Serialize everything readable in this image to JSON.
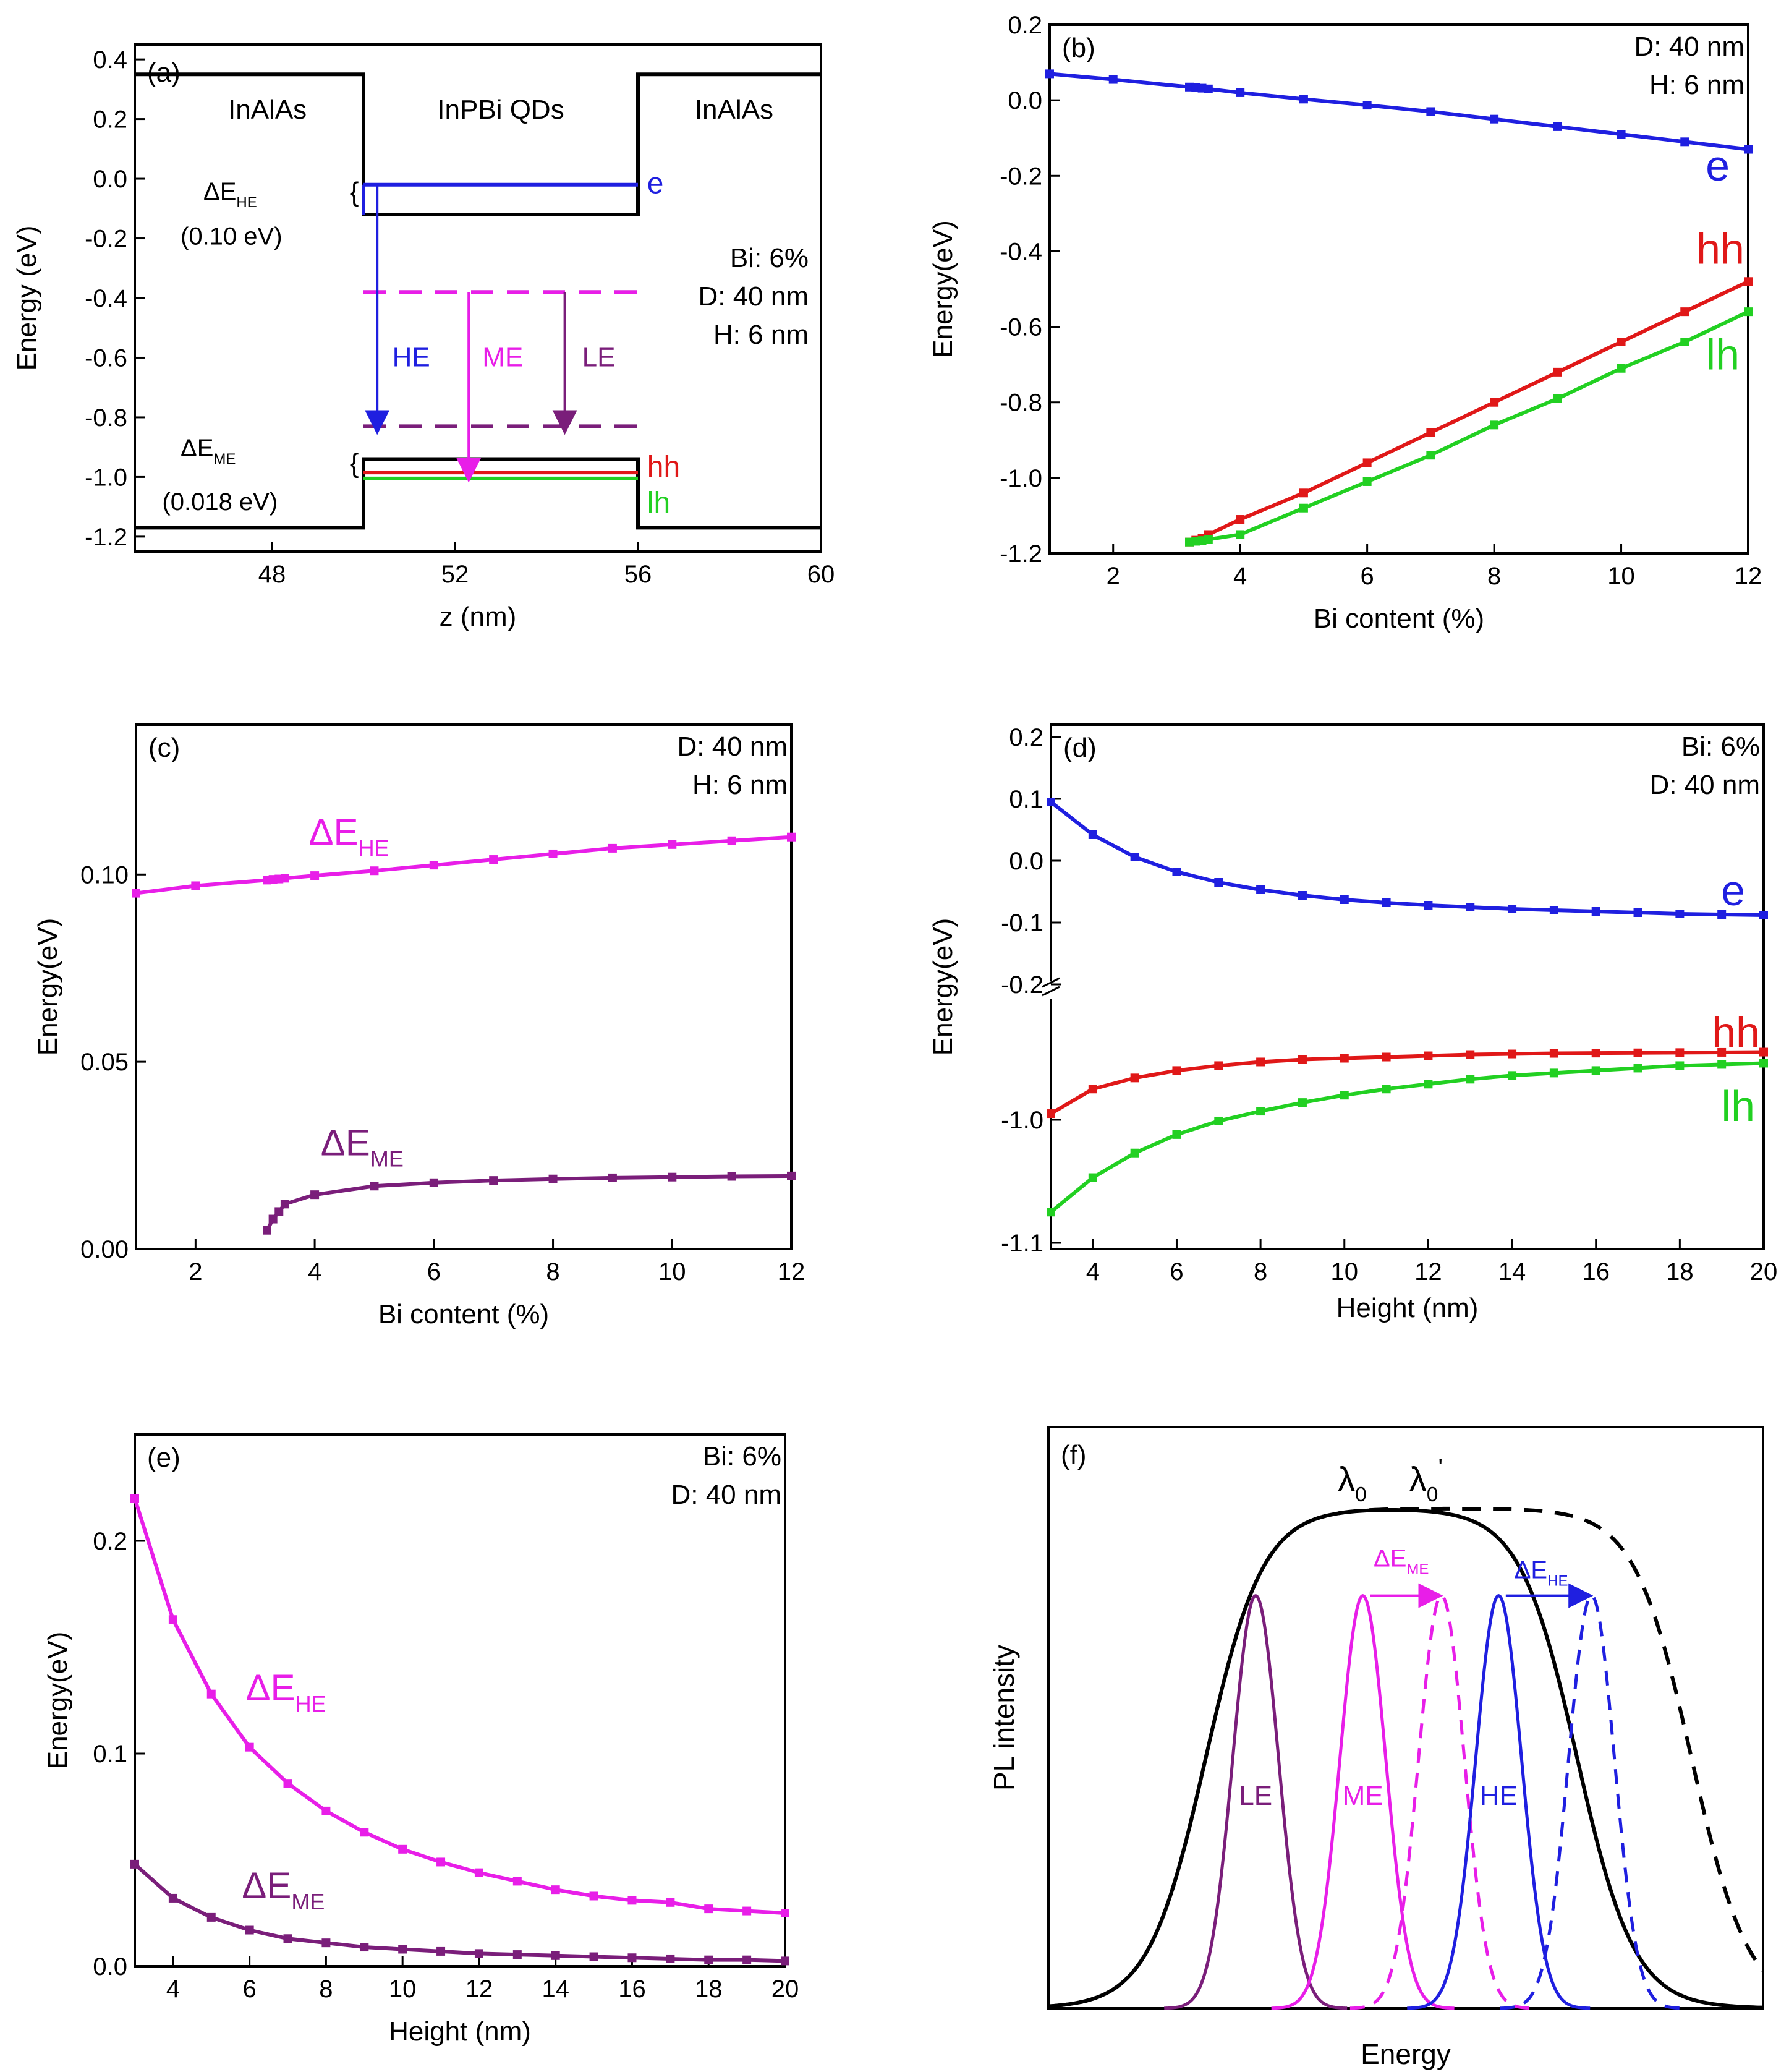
{
  "colors": {
    "e": "#1f1fe0",
    "hh": "#e01818",
    "lh": "#22d022",
    "he": "#e81ee8",
    "me": "#7a1e7a",
    "le": "#7a1e7a",
    "black": "#000000"
  },
  "chart_data": [
    {
      "id": "a",
      "type": "line",
      "panel_label": "(a)",
      "xlabel": "z (nm)",
      "ylabel": "Energy (eV)",
      "xlim": [
        45,
        60
      ],
      "ylim": [
        -1.25,
        0.45
      ],
      "xticks": [
        48,
        52,
        56,
        60
      ],
      "yticks": [
        0.4,
        0.2,
        0.0,
        -0.2,
        -0.4,
        -0.6,
        -0.8,
        -1.0,
        -1.2
      ],
      "ytick_labels": [
        "0.4",
        "0.2",
        "0.0",
        "-0.2",
        "-0.4",
        "-0.6",
        "-0.8",
        "-1.0",
        "-1.2"
      ],
      "regions": [
        "InAlAs",
        "InPBi QDs",
        "InAlAs"
      ],
      "info": [
        "Bi: 6%",
        "D: 40 nm",
        "H: 6 nm"
      ],
      "conduction_profile": {
        "x": [
          45,
          50,
          50,
          56,
          56,
          60
        ],
        "y": [
          0.35,
          0.35,
          -0.12,
          -0.12,
          0.35,
          0.35
        ]
      },
      "valence_profile": {
        "x": [
          45,
          50,
          50,
          56,
          56,
          60
        ],
        "y": [
          -1.17,
          -1.17,
          -0.94,
          -0.94,
          -1.17,
          -1.17
        ]
      },
      "levels": [
        {
          "name": "e",
          "y": -0.02,
          "x": [
            50,
            56
          ]
        },
        {
          "name": "hh",
          "y": -0.985,
          "x": [
            50,
            56
          ]
        },
        {
          "name": "lh",
          "y": -1.005,
          "x": [
            50,
            56
          ]
        }
      ],
      "dashed_levels": [
        -0.38,
        -0.83
      ],
      "transitions": [
        {
          "name": "HE",
          "x": 50.3,
          "y_from": -0.02,
          "y_to": -0.83
        },
        {
          "name": "ME",
          "x": 52.3,
          "y_from": -0.38,
          "y_to": -0.99
        },
        {
          "name": "LE",
          "x": 54.4,
          "y_from": -0.38,
          "y_to": -0.83
        }
      ],
      "annotations": [
        {
          "base": "ΔE",
          "sub": "HE",
          "value": "(0.10 eV)"
        },
        {
          "base": "ΔE",
          "sub": "ME",
          "value": "(0.018 eV)"
        }
      ],
      "series_labels": [
        "e",
        "hh",
        "lh"
      ]
    },
    {
      "id": "b",
      "type": "line",
      "panel_label": "(b)",
      "xlabel": "Bi content (%)",
      "ylabel": "Energy(eV)",
      "xlim": [
        1,
        12
      ],
      "ylim": [
        -1.2,
        0.2
      ],
      "xticks": [
        2,
        4,
        6,
        8,
        10,
        12
      ],
      "yticks": [
        0.2,
        0.0,
        -0.2,
        -0.4,
        -0.6,
        -0.8,
        -1.0,
        -1.2
      ],
      "ytick_labels": [
        "0.2",
        "0.0",
        "-0.2",
        "-0.4",
        "-0.6",
        "-0.8",
        "-1.0",
        "-1.2"
      ],
      "info": [
        "D: 40 nm",
        "H: 6 nm"
      ],
      "series": [
        {
          "name": "e",
          "x": [
            1,
            2,
            3.2,
            3.3,
            3.4,
            3.5,
            4,
            5,
            6,
            7,
            8,
            9,
            10,
            11,
            12
          ],
          "y": [
            0.07,
            0.055,
            0.035,
            0.033,
            0.032,
            0.03,
            0.02,
            0.003,
            -0.013,
            -0.03,
            -0.05,
            -0.07,
            -0.09,
            -0.11,
            -0.13
          ]
        },
        {
          "name": "hh",
          "x": [
            3.2,
            3.3,
            3.4,
            3.5,
            4,
            5,
            6,
            7,
            8,
            9,
            10,
            11,
            12
          ],
          "y": [
            -1.17,
            -1.165,
            -1.16,
            -1.15,
            -1.11,
            -1.04,
            -0.96,
            -0.88,
            -0.8,
            -0.72,
            -0.64,
            -0.56,
            -0.48
          ]
        },
        {
          "name": "lh",
          "x": [
            3.2,
            3.3,
            3.4,
            3.5,
            4,
            5,
            6,
            7,
            8,
            9,
            10,
            11,
            12
          ],
          "y": [
            -1.17,
            -1.168,
            -1.166,
            -1.163,
            -1.15,
            -1.08,
            -1.01,
            -0.94,
            -0.86,
            -0.79,
            -0.71,
            -0.64,
            -0.56
          ]
        }
      ]
    },
    {
      "id": "c",
      "type": "line",
      "panel_label": "(c)",
      "xlabel": "Bi content (%)",
      "ylabel": "Energy(eV)",
      "xlim": [
        1,
        12
      ],
      "ylim": [
        0,
        0.14
      ],
      "xticks": [
        2,
        4,
        6,
        8,
        10,
        12
      ],
      "yticks": [
        0.1,
        0.05,
        0.0
      ],
      "ytick_labels": [
        "0.10",
        "0.05",
        "0.00"
      ],
      "info": [
        "D: 40 nm",
        "H: 6 nm"
      ],
      "series": [
        {
          "name": "ΔE_HE",
          "label_base": "ΔE",
          "label_sub": "HE",
          "x": [
            1,
            2,
            3.2,
            3.3,
            3.4,
            3.5,
            4,
            5,
            6,
            7,
            8,
            9,
            10,
            11,
            12
          ],
          "y": [
            0.095,
            0.097,
            0.0985,
            0.0987,
            0.0988,
            0.099,
            0.0997,
            0.101,
            0.1025,
            0.104,
            0.1055,
            0.107,
            0.108,
            0.109,
            0.11
          ]
        },
        {
          "name": "ΔE_ME",
          "label_base": "ΔE",
          "label_sub": "ME",
          "x": [
            3.2,
            3.3,
            3.4,
            3.5,
            4,
            5,
            6,
            7,
            8,
            9,
            10,
            11,
            12
          ],
          "y": [
            0.005,
            0.008,
            0.01,
            0.012,
            0.0145,
            0.0168,
            0.0177,
            0.0183,
            0.0187,
            0.019,
            0.0192,
            0.0194,
            0.0195
          ]
        }
      ]
    },
    {
      "id": "d",
      "type": "line",
      "panel_label": "(d)",
      "xlabel": "Height (nm)",
      "ylabel": "Energy(eV)",
      "xlim": [
        3,
        20
      ],
      "broken_axis": {
        "upper": [
          -0.2,
          0.2
        ],
        "lower": [
          -1.1,
          -0.9
        ]
      },
      "xticks": [
        4,
        6,
        8,
        10,
        12,
        14,
        16,
        18,
        20
      ],
      "yticks_upper": [
        0.2,
        0.1,
        0.0,
        -0.1,
        -0.2
      ],
      "ytick_labels_upper": [
        "0.2",
        "0.1",
        "0.0",
        "-0.1",
        "-0.2"
      ],
      "yticks_lower": [
        -1.0,
        -1.1
      ],
      "ytick_labels_lower": [
        "-1.0",
        "-1.1"
      ],
      "info": [
        "Bi: 6%",
        "D: 40 nm"
      ],
      "series": [
        {
          "name": "e",
          "x": [
            3,
            4,
            5,
            6,
            7,
            8,
            9,
            10,
            11,
            12,
            13,
            14,
            15,
            16,
            17,
            18,
            19,
            20
          ],
          "y": [
            0.095,
            0.042,
            0.006,
            -0.018,
            -0.035,
            -0.047,
            -0.056,
            -0.063,
            -0.068,
            -0.072,
            -0.075,
            -0.078,
            -0.08,
            -0.082,
            -0.084,
            -0.086,
            -0.087,
            -0.088
          ]
        },
        {
          "name": "hh",
          "x": [
            3,
            4,
            5,
            6,
            7,
            8,
            9,
            10,
            11,
            12,
            13,
            14,
            15,
            16,
            17,
            18,
            19,
            20
          ],
          "y": [
            -0.995,
            -0.975,
            -0.966,
            -0.96,
            -0.956,
            -0.953,
            -0.951,
            -0.95,
            -0.949,
            -0.948,
            -0.947,
            -0.9465,
            -0.946,
            -0.9458,
            -0.9456,
            -0.9454,
            -0.9452,
            -0.945
          ]
        },
        {
          "name": "lh",
          "x": [
            3,
            4,
            5,
            6,
            7,
            8,
            9,
            10,
            11,
            12,
            13,
            14,
            15,
            16,
            17,
            18,
            19,
            20
          ],
          "y": [
            -1.075,
            -1.047,
            -1.027,
            -1.012,
            -1.001,
            -0.993,
            -0.986,
            -0.98,
            -0.975,
            -0.971,
            -0.967,
            -0.964,
            -0.962,
            -0.96,
            -0.958,
            -0.956,
            -0.955,
            -0.954
          ]
        }
      ]
    },
    {
      "id": "e",
      "type": "line",
      "panel_label": "(e)",
      "xlabel": "Height (nm)",
      "ylabel": "Energy(eV)",
      "xlim": [
        3,
        20
      ],
      "ylim": [
        0,
        0.25
      ],
      "xticks": [
        4,
        6,
        8,
        10,
        12,
        14,
        16,
        18,
        20
      ],
      "yticks": [
        0.2,
        0.1,
        0.0
      ],
      "ytick_labels": [
        "0.2",
        "0.1",
        "0.0"
      ],
      "info": [
        "Bi: 6%",
        "D: 40 nm"
      ],
      "series": [
        {
          "name": "ΔE_HE",
          "label_base": "ΔE",
          "label_sub": "HE",
          "x": [
            3,
            4,
            5,
            6,
            7,
            8,
            9,
            10,
            11,
            12,
            13,
            14,
            15,
            16,
            17,
            18,
            19,
            20
          ],
          "y": [
            0.22,
            0.163,
            0.128,
            0.103,
            0.086,
            0.073,
            0.063,
            0.055,
            0.049,
            0.044,
            0.04,
            0.036,
            0.033,
            0.031,
            0.03,
            0.027,
            0.026,
            0.025
          ]
        },
        {
          "name": "ΔE_ME",
          "label_base": "ΔE",
          "label_sub": "ME",
          "x": [
            3,
            4,
            5,
            6,
            7,
            8,
            9,
            10,
            11,
            12,
            13,
            14,
            15,
            16,
            17,
            18,
            19,
            20
          ],
          "y": [
            0.048,
            0.032,
            0.023,
            0.017,
            0.013,
            0.011,
            0.009,
            0.008,
            0.007,
            0.006,
            0.0055,
            0.005,
            0.0045,
            0.004,
            0.0035,
            0.003,
            0.003,
            0.0025
          ]
        }
      ]
    },
    {
      "id": "f",
      "type": "line",
      "panel_label": "(f)",
      "xlabel": "Energy",
      "ylabel": "PL intensity",
      "envelope_labels": [
        {
          "base": "λ",
          "sub": "0",
          "prime": ""
        },
        {
          "base": "λ",
          "sub": "0",
          "prime": "'"
        }
      ],
      "envelopes": [
        {
          "name": "λ0",
          "style": "solid",
          "rise_center": 0.22,
          "fall_center": 0.74,
          "width": 0.04,
          "height": 0.86
        },
        {
          "name": "λ0'",
          "style": "dashed",
          "rise_center": 0.22,
          "fall_center": 0.9,
          "width": 0.04,
          "height": 0.86
        }
      ],
      "peaks": [
        {
          "name": "LE",
          "center": 0.29,
          "sigma": 0.032,
          "height": 0.71,
          "style": "solid"
        },
        {
          "name": "ME",
          "center": 0.44,
          "sigma": 0.032,
          "height": 0.71,
          "style": "solid"
        },
        {
          "name": "ME_shift",
          "center": 0.55,
          "sigma": 0.032,
          "height": 0.71,
          "style": "dashed"
        },
        {
          "name": "HE",
          "center": 0.63,
          "sigma": 0.032,
          "height": 0.71,
          "style": "solid"
        },
        {
          "name": "HE_shift",
          "center": 0.76,
          "sigma": 0.032,
          "height": 0.71,
          "style": "dashed"
        }
      ],
      "peak_labels": [
        "LE",
        "ME",
        "HE"
      ],
      "shift_labels": [
        {
          "base": "ΔE",
          "sub": "ME"
        },
        {
          "base": "ΔE",
          "sub": "HE"
        }
      ]
    }
  ]
}
